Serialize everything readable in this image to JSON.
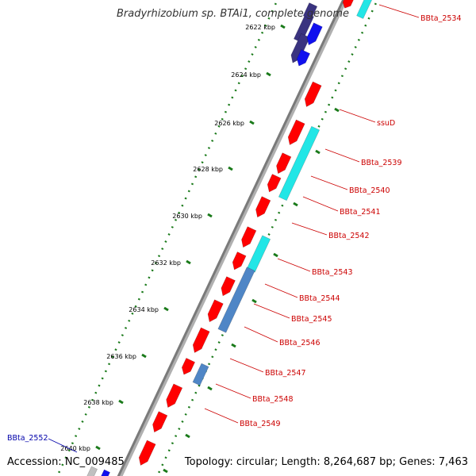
{
  "title": "Bradyrhizobium sp. BTAi1, complete genome",
  "footer": {
    "accession": "Accession: NC_009485",
    "summary": "Topology: circular; Length: 8,264,687 bp; Genes: 7,463"
  },
  "colors": {
    "forward_cds": "#ff0000",
    "reverse_cds": "#ff0000",
    "feature_cyan": "#22e6e6",
    "feature_steelblue": "#4f86c6",
    "feature_blue": "#1010ee",
    "feature_darkblue": "#3a3380",
    "backbone": "#8a8a8a",
    "tick_green": "#1a7a1a",
    "label_red": "#cc0000",
    "label_blue": "#0000aa"
  },
  "ticks": [
    "2622 kbp",
    "2624 kbp",
    "2626 kbp",
    "2628 kbp",
    "2630 kbp",
    "2632 kbp",
    "2634 kbp",
    "2636 kbp",
    "2638 kbp",
    "2640 kbp"
  ],
  "gene_labels": {
    "right": [
      "BBta_2534",
      "ssuD",
      "BBta_2539",
      "BBta_2540",
      "BBta_2541",
      "BBta_2542",
      "BBta_2543",
      "BBta_2544",
      "BBta_2545",
      "BBta_2546",
      "BBta_2547",
      "BBta_2548",
      "BBta_2549"
    ],
    "left": [
      "BBta_2552"
    ]
  }
}
